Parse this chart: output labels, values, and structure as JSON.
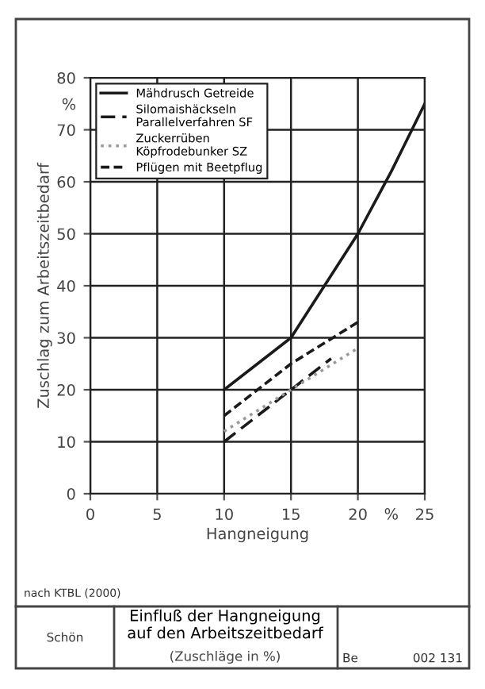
{
  "chart_data": {
    "type": "line",
    "title": "Einfluß der Hangneigung\nauf den Arbeitszeitbedarf",
    "subtitle": "(Zuschläge in %)",
    "xlabel": "Hangneigung",
    "ylabel": "Zuschlag zum Arbeitszeitbedarf",
    "series": [
      {
        "name": "Mähdrusch Getreide",
        "color": "#1a1a1a",
        "line_style": "solid",
        "x": [
          10,
          15,
          17.5,
          20,
          22.5,
          25
        ],
        "values": [
          20,
          30,
          40,
          50,
          62,
          75
        ]
      },
      {
        "name": "Silomaishäckseln\nParallelverfahren SF",
        "color": "#1a1a1a",
        "line_style": "dashed",
        "x": [
          10,
          15,
          18
        ],
        "values": [
          10,
          20,
          26
        ]
      },
      {
        "name": "Zuckerrüben\nKöpfrodebunker SZ",
        "color": "#9a9a9a",
        "line_style": "dotted",
        "x": [
          10,
          15,
          20
        ],
        "values": [
          12,
          20,
          28
        ]
      },
      {
        "name": "Pflügen mit Beetpflug",
        "color": "#1a1a1a",
        "line_style": "dashdot",
        "x": [
          10,
          15,
          20
        ],
        "values": [
          15,
          25,
          33
        ]
      }
    ],
    "xlim": [
      0,
      25
    ],
    "ylim": [
      0,
      80
    ],
    "xticks": [
      0,
      5,
      10,
      15,
      20,
      {
        "value": 22.5,
        "label": "%"
      },
      25
    ],
    "yticks": [
      0,
      10,
      20,
      30,
      40,
      50,
      60,
      70,
      {
        "value": 75,
        "label": "%"
      },
      80
    ],
    "grid": true,
    "legend": "top left",
    "marker": "none",
    "annotations": [
      "nach KTBL (2000)",
      "Schön",
      "Be",
      "002 131"
    ]
  }
}
